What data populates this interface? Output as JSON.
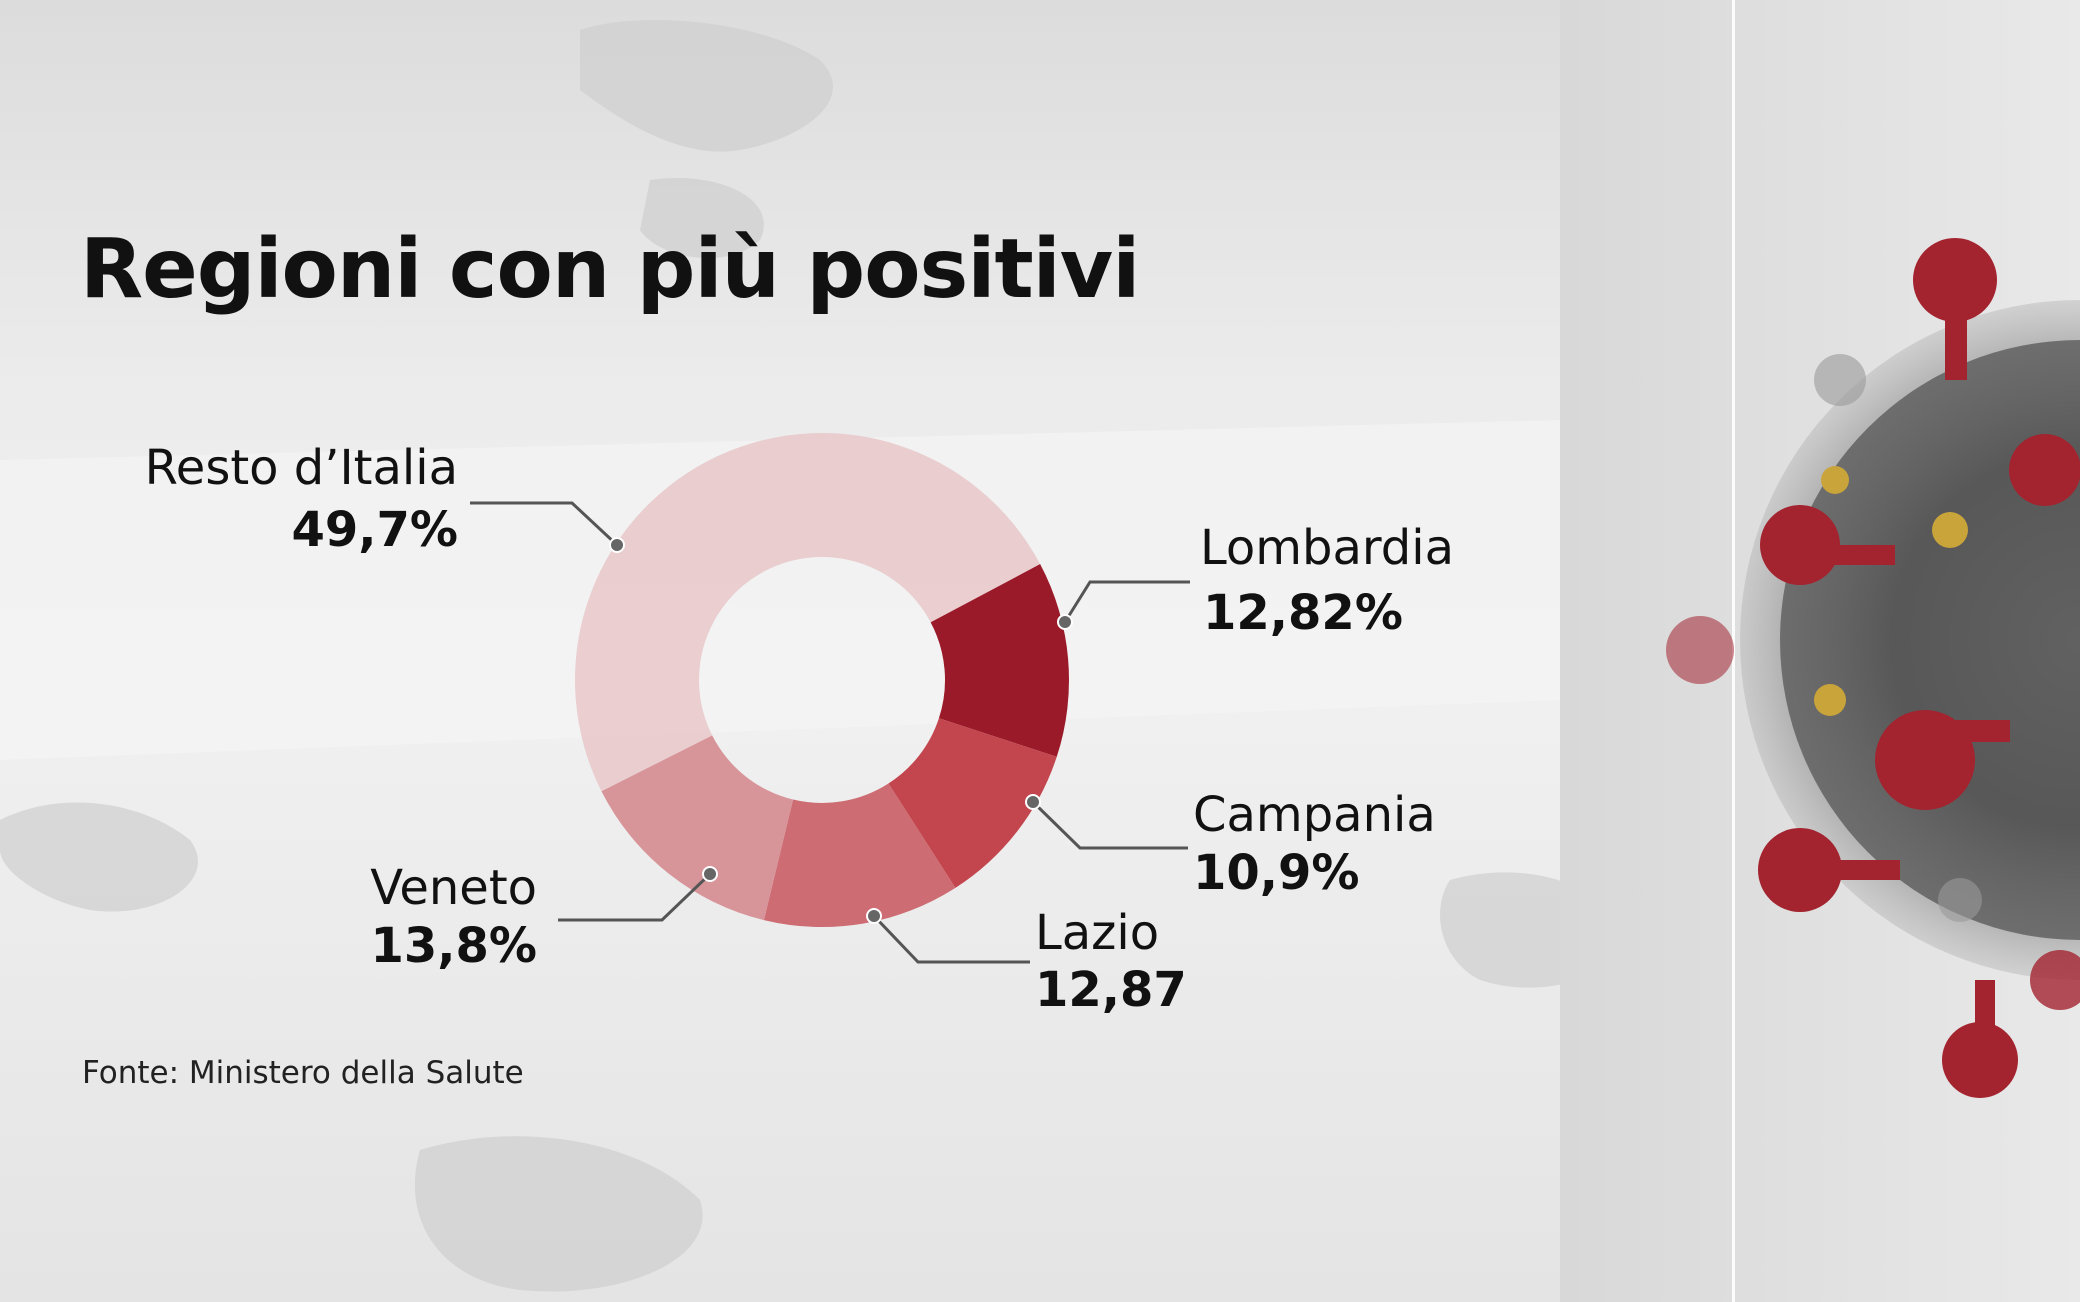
{
  "title": "Regioni con più positivi",
  "source": "Fonte: Ministero della Salute",
  "chart_data": {
    "type": "pie",
    "subtype": "donut",
    "title": "Regioni con più positivi",
    "slices": [
      {
        "label": "Lombardia",
        "value": 12.82,
        "display": "12,82%",
        "color": "#9b1a29"
      },
      {
        "label": "Campania",
        "value": 10.9,
        "display": "10,9%",
        "color": "#c3464e"
      },
      {
        "label": "Lazio",
        "value": 12.87,
        "display": "12,87",
        "color": "#cd6c72"
      },
      {
        "label": "Veneto",
        "value": 13.8,
        "display": "13,8%",
        "color": "#d7959a"
      },
      {
        "label": "Resto d’Italia",
        "value": 49.7,
        "display": "49,7%",
        "color": "#e8c7c9"
      }
    ],
    "legend": "callout labels around the donut"
  }
}
